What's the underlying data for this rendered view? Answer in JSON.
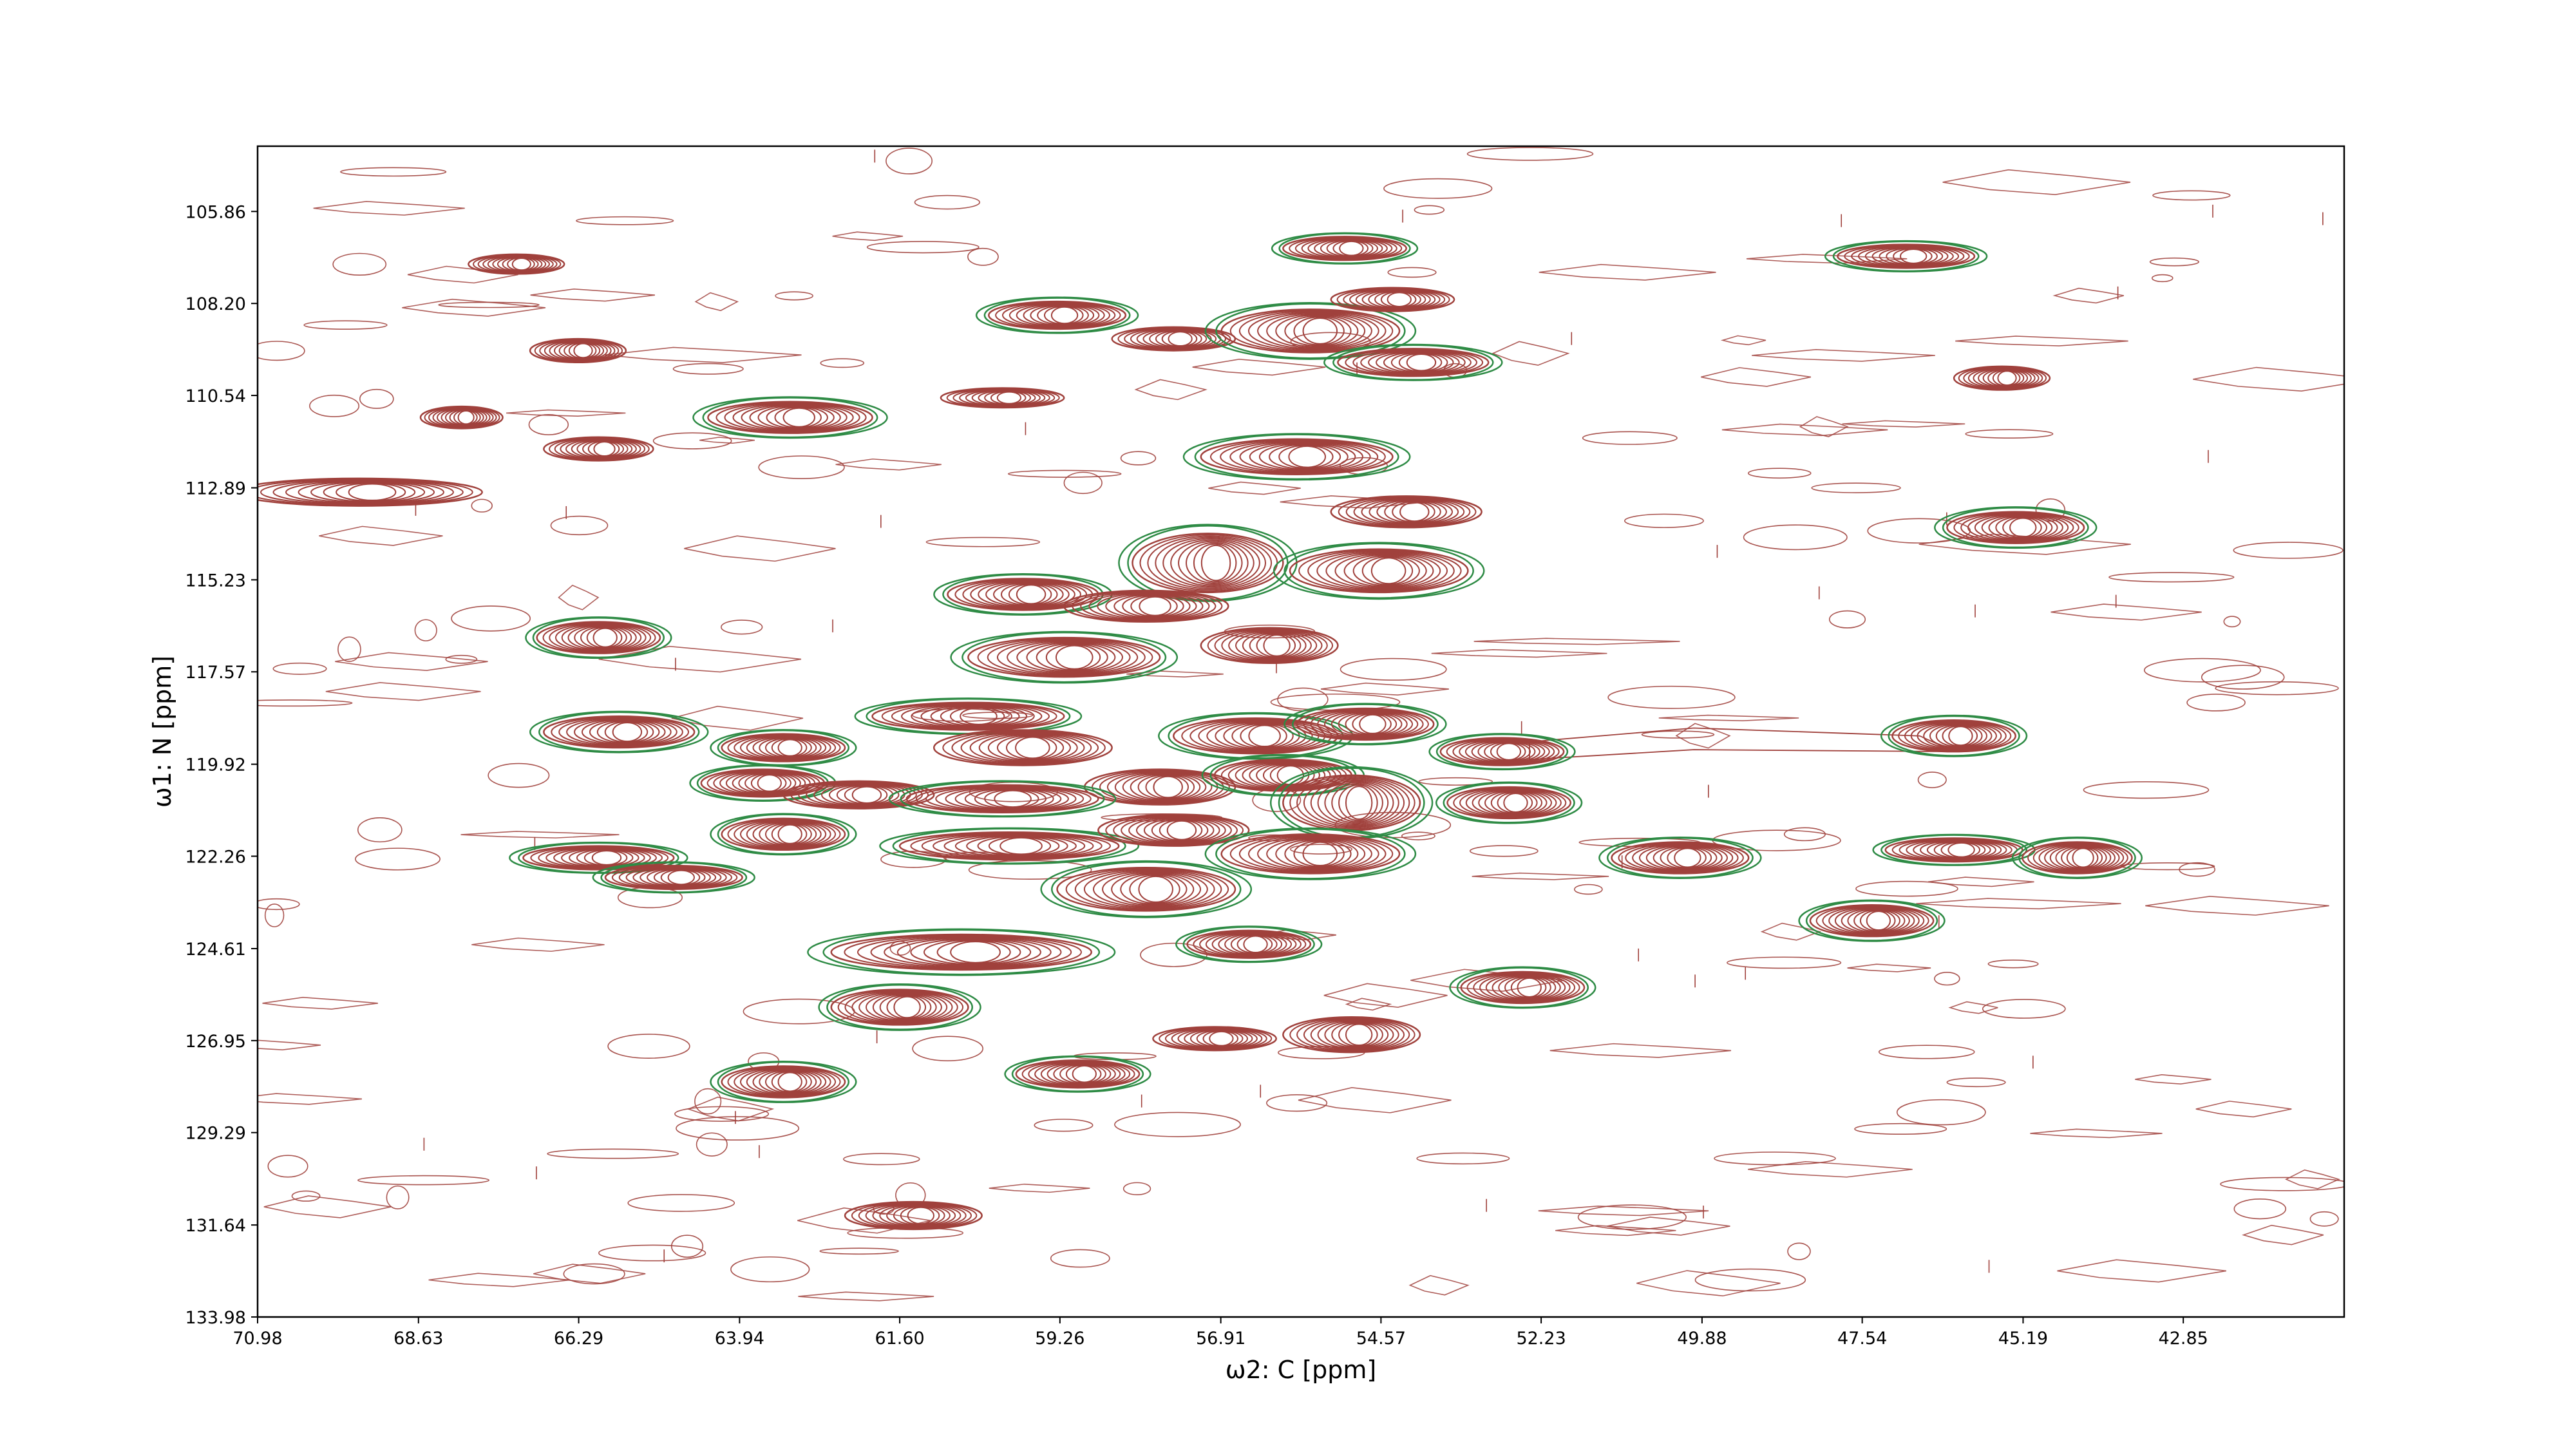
{
  "chart_data": {
    "type": "contour",
    "xlabel": "ω2: C [ppm]",
    "ylabel": "ω1: N [ppm]",
    "x_axis_reversed": true,
    "y_axis_reversed": true,
    "xlim": [
      70.98,
      40.5
    ],
    "ylim": [
      104.2,
      133.98
    ],
    "x_ticks": [
      "70.98",
      "68.63",
      "66.29",
      "63.94",
      "61.60",
      "59.26",
      "56.91",
      "54.57",
      "52.23",
      "49.88",
      "47.54",
      "45.19",
      "42.85"
    ],
    "y_ticks": [
      "105.86",
      "108.20",
      "110.54",
      "112.89",
      "115.23",
      "117.57",
      "119.92",
      "122.26",
      "124.61",
      "126.95",
      "129.29",
      "131.64",
      "133.98"
    ],
    "colors": {
      "positive": "#a0413c",
      "negative": "#2e8b45"
    },
    "series": [
      {
        "name": "",
        "peaks": [
          {
            "x": 55.1,
            "y": 106.8,
            "rx": 0.9,
            "ry": 0.3,
            "neg": true
          },
          {
            "x": 46.9,
            "y": 107.0,
            "rx": 1.0,
            "ry": 0.3,
            "neg": true
          },
          {
            "x": 67.2,
            "y": 107.2,
            "rx": 0.7,
            "ry": 0.25,
            "neg": false
          },
          {
            "x": 59.3,
            "y": 108.5,
            "rx": 1.0,
            "ry": 0.35,
            "neg": true
          },
          {
            "x": 57.6,
            "y": 109.1,
            "rx": 0.9,
            "ry": 0.3,
            "neg": false
          },
          {
            "x": 55.6,
            "y": 108.9,
            "rx": 1.3,
            "ry": 0.55,
            "neg": true
          },
          {
            "x": 54.1,
            "y": 109.7,
            "rx": 1.1,
            "ry": 0.35,
            "neg": true
          },
          {
            "x": 54.4,
            "y": 108.1,
            "rx": 0.9,
            "ry": 0.3,
            "neg": false
          },
          {
            "x": 66.3,
            "y": 109.4,
            "rx": 0.7,
            "ry": 0.3,
            "neg": false
          },
          {
            "x": 45.5,
            "y": 110.1,
            "rx": 0.7,
            "ry": 0.3,
            "neg": false
          },
          {
            "x": 60.1,
            "y": 110.6,
            "rx": 0.9,
            "ry": 0.25,
            "neg": false
          },
          {
            "x": 68.0,
            "y": 111.1,
            "rx": 0.6,
            "ry": 0.28,
            "neg": false
          },
          {
            "x": 63.2,
            "y": 111.1,
            "rx": 1.2,
            "ry": 0.4,
            "neg": true
          },
          {
            "x": 66.0,
            "y": 111.9,
            "rx": 0.8,
            "ry": 0.3,
            "neg": false
          },
          {
            "x": 55.8,
            "y": 112.1,
            "rx": 1.4,
            "ry": 0.45,
            "neg": true
          },
          {
            "x": 69.5,
            "y": 113.0,
            "rx": 1.8,
            "ry": 0.35,
            "neg": false
          },
          {
            "x": 54.2,
            "y": 113.5,
            "rx": 1.1,
            "ry": 0.4,
            "neg": false
          },
          {
            "x": 45.3,
            "y": 113.9,
            "rx": 1.0,
            "ry": 0.4,
            "neg": true
          },
          {
            "x": 57.1,
            "y": 114.8,
            "rx": 1.1,
            "ry": 0.75,
            "neg": true
          },
          {
            "x": 54.6,
            "y": 115.0,
            "rx": 1.3,
            "ry": 0.55,
            "neg": true
          },
          {
            "x": 59.8,
            "y": 115.6,
            "rx": 1.1,
            "ry": 0.4,
            "neg": true
          },
          {
            "x": 58.0,
            "y": 115.9,
            "rx": 1.2,
            "ry": 0.4,
            "neg": false
          },
          {
            "x": 66.0,
            "y": 116.7,
            "rx": 0.9,
            "ry": 0.4,
            "neg": true
          },
          {
            "x": 56.2,
            "y": 116.9,
            "rx": 1.0,
            "ry": 0.45,
            "neg": false
          },
          {
            "x": 59.2,
            "y": 117.2,
            "rx": 1.4,
            "ry": 0.5,
            "neg": true
          },
          {
            "x": 65.7,
            "y": 119.1,
            "rx": 1.1,
            "ry": 0.4,
            "neg": true
          },
          {
            "x": 63.3,
            "y": 119.5,
            "rx": 0.9,
            "ry": 0.35,
            "neg": true
          },
          {
            "x": 60.6,
            "y": 118.7,
            "rx": 1.4,
            "ry": 0.35,
            "neg": true
          },
          {
            "x": 59.8,
            "y": 119.5,
            "rx": 1.3,
            "ry": 0.45,
            "neg": false
          },
          {
            "x": 56.4,
            "y": 119.2,
            "rx": 1.2,
            "ry": 0.45,
            "neg": true
          },
          {
            "x": 54.8,
            "y": 118.9,
            "rx": 1.0,
            "ry": 0.4,
            "neg": true
          },
          {
            "x": 52.8,
            "y": 119.6,
            "rx": 0.9,
            "ry": 0.35,
            "neg": true
          },
          {
            "x": 46.2,
            "y": 119.2,
            "rx": 0.9,
            "ry": 0.4,
            "neg": true
          },
          {
            "x": 63.6,
            "y": 120.4,
            "rx": 0.9,
            "ry": 0.35,
            "neg": true
          },
          {
            "x": 57.8,
            "y": 120.5,
            "rx": 1.1,
            "ry": 0.45,
            "neg": false
          },
          {
            "x": 56.0,
            "y": 120.2,
            "rx": 1.0,
            "ry": 0.4,
            "neg": true
          },
          {
            "x": 62.2,
            "y": 120.7,
            "rx": 1.1,
            "ry": 0.35,
            "neg": false
          },
          {
            "x": 60.1,
            "y": 120.8,
            "rx": 1.4,
            "ry": 0.35,
            "neg": true
          },
          {
            "x": 55.0,
            "y": 120.9,
            "rx": 1.0,
            "ry": 0.7,
            "neg": true
          },
          {
            "x": 52.7,
            "y": 120.9,
            "rx": 0.9,
            "ry": 0.4,
            "neg": true
          },
          {
            "x": 63.3,
            "y": 121.7,
            "rx": 0.9,
            "ry": 0.4,
            "neg": true
          },
          {
            "x": 60.0,
            "y": 122.0,
            "rx": 1.6,
            "ry": 0.35,
            "neg": true
          },
          {
            "x": 57.6,
            "y": 121.6,
            "rx": 1.1,
            "ry": 0.4,
            "neg": false
          },
          {
            "x": 55.6,
            "y": 122.2,
            "rx": 1.3,
            "ry": 0.5,
            "neg": true
          },
          {
            "x": 66.0,
            "y": 122.3,
            "rx": 1.1,
            "ry": 0.3,
            "neg": true
          },
          {
            "x": 64.9,
            "y": 122.8,
            "rx": 1.0,
            "ry": 0.3,
            "neg": true
          },
          {
            "x": 50.2,
            "y": 122.3,
            "rx": 1.0,
            "ry": 0.4,
            "neg": true
          },
          {
            "x": 46.2,
            "y": 122.1,
            "rx": 1.0,
            "ry": 0.3,
            "neg": true
          },
          {
            "x": 44.4,
            "y": 122.3,
            "rx": 0.8,
            "ry": 0.4,
            "neg": true
          },
          {
            "x": 58.0,
            "y": 123.1,
            "rx": 1.3,
            "ry": 0.55,
            "neg": true
          },
          {
            "x": 47.4,
            "y": 123.9,
            "rx": 0.9,
            "ry": 0.4,
            "neg": true
          },
          {
            "x": 60.7,
            "y": 124.7,
            "rx": 1.9,
            "ry": 0.45,
            "neg": true
          },
          {
            "x": 56.5,
            "y": 124.5,
            "rx": 0.9,
            "ry": 0.35,
            "neg": true
          },
          {
            "x": 52.5,
            "y": 125.6,
            "rx": 0.9,
            "ry": 0.4,
            "neg": true
          },
          {
            "x": 61.6,
            "y": 126.1,
            "rx": 1.0,
            "ry": 0.45,
            "neg": true
          },
          {
            "x": 57.0,
            "y": 126.9,
            "rx": 0.9,
            "ry": 0.3,
            "neg": false
          },
          {
            "x": 55.0,
            "y": 126.8,
            "rx": 1.0,
            "ry": 0.45,
            "neg": false
          },
          {
            "x": 63.3,
            "y": 128.0,
            "rx": 0.9,
            "ry": 0.4,
            "neg": true
          },
          {
            "x": 59.0,
            "y": 127.8,
            "rx": 0.9,
            "ry": 0.35,
            "neg": true
          },
          {
            "x": 61.4,
            "y": 131.4,
            "rx": 1.0,
            "ry": 0.35,
            "neg": false
          }
        ]
      }
    ]
  }
}
